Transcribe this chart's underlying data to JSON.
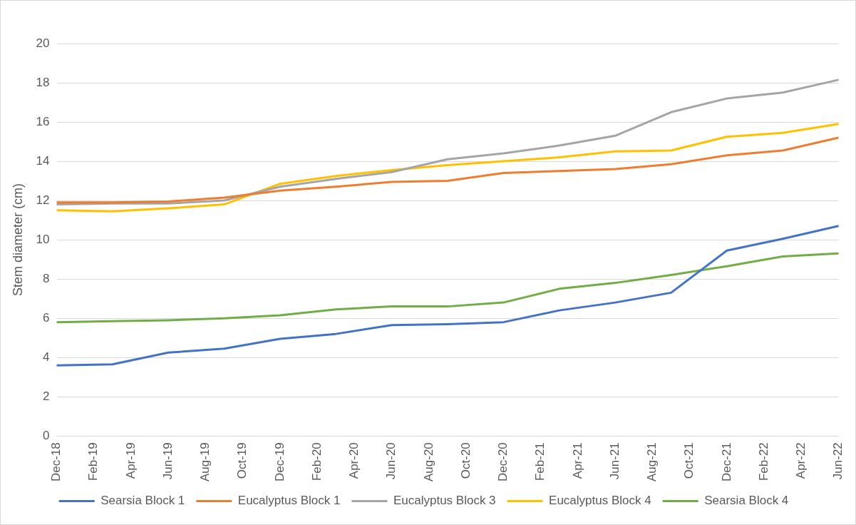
{
  "chart_data": {
    "type": "line",
    "ylabel": "Stem diameter (cm)",
    "x": [
      "2018-12",
      "2019-03",
      "2019-06",
      "2019-09",
      "2019-12",
      "2020-03",
      "2020-06",
      "2020-09",
      "2020-12",
      "2021-03",
      "2021-06",
      "2021-09",
      "2021-12",
      "2022-03",
      "2022-06"
    ],
    "series": [
      {
        "name": "Searsia Block 1",
        "color": "#4472c4",
        "values": [
          3.6,
          3.65,
          4.25,
          4.45,
          4.95,
          5.2,
          5.65,
          5.7,
          5.8,
          6.4,
          6.8,
          7.3,
          9.45,
          10.05,
          10.7
        ]
      },
      {
        "name": "Eucalyptus Block 1",
        "color": "#ed7d31",
        "values": [
          11.9,
          11.9,
          11.95,
          12.15,
          12.5,
          12.7,
          12.95,
          13.0,
          13.4,
          13.5,
          13.6,
          13.85,
          14.3,
          14.55,
          15.2
        ]
      },
      {
        "name": "Eucalyptus Block 3",
        "color": "#a5a5a5",
        "values": [
          11.8,
          11.85,
          11.85,
          12.0,
          12.7,
          13.1,
          13.45,
          14.1,
          14.4,
          14.8,
          15.3,
          16.5,
          17.2,
          17.5,
          18.15
        ]
      },
      {
        "name": "Eucalyptus Block 4",
        "color": "#ffc000",
        "values": [
          11.5,
          11.45,
          11.6,
          11.8,
          12.85,
          13.25,
          13.55,
          13.8,
          14.0,
          14.2,
          14.5,
          14.55,
          15.25,
          15.45,
          15.9
        ]
      },
      {
        "name": "Searsia Block 4",
        "color": "#70ad47",
        "values": [
          5.8,
          5.85,
          5.9,
          6.0,
          6.15,
          6.45,
          6.6,
          6.6,
          6.8,
          7.5,
          7.8,
          8.2,
          8.65,
          9.15,
          9.3
        ]
      }
    ],
    "xlim": [
      "2018-12",
      "2022-06"
    ],
    "xticks": [
      {
        "value": "2018-12",
        "label": "Dec-18"
      },
      {
        "value": "2019-02",
        "label": "Feb-19"
      },
      {
        "value": "2019-04",
        "label": "Apr-19"
      },
      {
        "value": "2019-06",
        "label": "Jun-19"
      },
      {
        "value": "2019-08",
        "label": "Aug-19"
      },
      {
        "value": "2019-10",
        "label": "Oct-19"
      },
      {
        "value": "2019-12",
        "label": "Dec-19"
      },
      {
        "value": "2020-02",
        "label": "Feb-20"
      },
      {
        "value": "2020-04",
        "label": "Apr-20"
      },
      {
        "value": "2020-06",
        "label": "Jun-20"
      },
      {
        "value": "2020-08",
        "label": "Aug-20"
      },
      {
        "value": "2020-10",
        "label": "Oct-20"
      },
      {
        "value": "2020-12",
        "label": "Dec-20"
      },
      {
        "value": "2021-02",
        "label": "Feb-21"
      },
      {
        "value": "2021-04",
        "label": "Apr-21"
      },
      {
        "value": "2021-06",
        "label": "Jun-21"
      },
      {
        "value": "2021-08",
        "label": "Aug-21"
      },
      {
        "value": "2021-10",
        "label": "Oct-21"
      },
      {
        "value": "2021-12",
        "label": "Dec-21"
      },
      {
        "value": "2022-02",
        "label": "Feb-22"
      },
      {
        "value": "2022-04",
        "label": "Apr-22"
      },
      {
        "value": "2022-06",
        "label": "Jun-22"
      }
    ],
    "ylim": [
      0,
      20
    ],
    "yticks": [
      0,
      2,
      4,
      6,
      8,
      10,
      12,
      14,
      16,
      18,
      20
    ],
    "grid": "y",
    "legend": "bottom",
    "marker": "none",
    "line_style": "solid"
  }
}
